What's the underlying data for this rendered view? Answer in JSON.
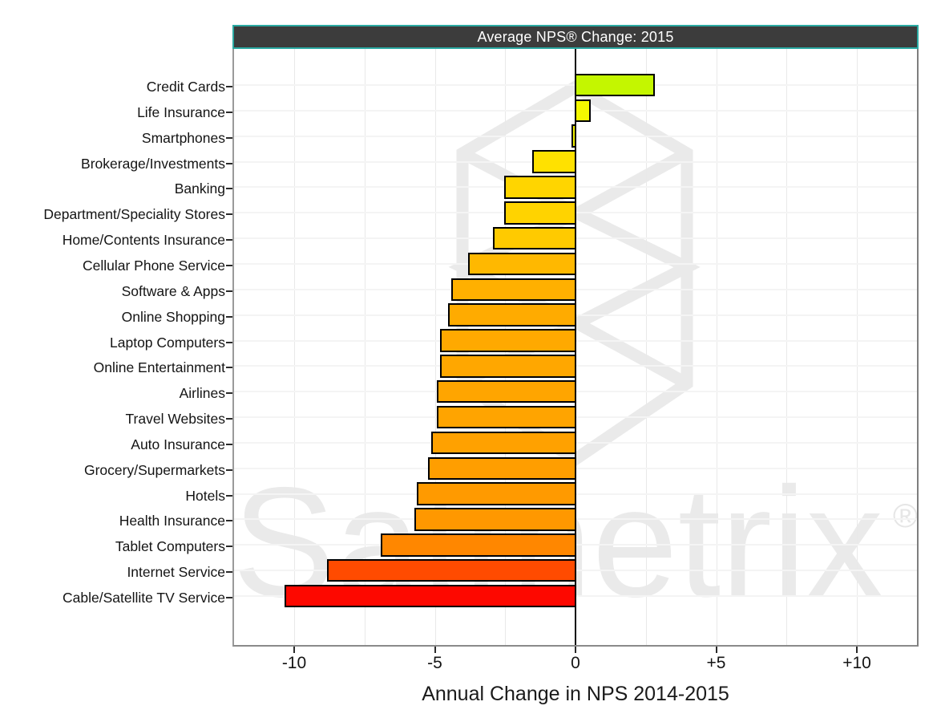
{
  "window": {
    "title_bar": {
      "text": "Average NPS® Change: 2015",
      "background": "#3c3c3c",
      "border_color": "#2ba9a2",
      "text_color": "#ffffff"
    }
  },
  "chart_data": {
    "type": "bar",
    "orientation": "horizontal",
    "title": "Average NPS® Change: 2015",
    "xlabel": "Annual Change in NPS 2014-2015",
    "xlim": [
      -12.2,
      12.2
    ],
    "x_tick_values": [
      -10,
      -5,
      0,
      5,
      10
    ],
    "x_tick_labels": [
      "-10",
      "-5",
      "0",
      "+5",
      "+10"
    ],
    "grid": {
      "vertical_step": 2.5,
      "horizontal_lines": "one per category",
      "zero_line": true
    },
    "legend": "none",
    "categories": [
      "Credit Cards",
      "Life Insurance",
      "Smartphones",
      "Brokerage/Investments",
      "Banking",
      "Department/Speciality Stores",
      "Home/Contents Insurance",
      "Cellular Phone Service",
      "Software & Apps",
      "Online Shopping",
      "Laptop Computers",
      "Online Entertainment",
      "Airlines",
      "Travel Websites",
      "Auto Insurance",
      "Grocery/Supermarkets",
      "Hotels",
      "Health Insurance",
      "Tablet Computers",
      "Internet Service",
      "Cable/Satellite TV Service"
    ],
    "values": [
      2.8,
      0.5,
      -0.1,
      -1.5,
      -2.5,
      -2.5,
      -2.9,
      -3.8,
      -4.4,
      -4.5,
      -4.8,
      -4.8,
      -4.9,
      -4.9,
      -5.1,
      -5.2,
      -5.6,
      -5.7,
      -6.9,
      -8.8,
      -10.3
    ],
    "bar_colors": [
      "#c4f600",
      "#f4f900",
      "#f0f000",
      "#ffe100",
      "#ffd500",
      "#ffd300",
      "#ffca00",
      "#ffb800",
      "#ffb000",
      "#ffab00",
      "#ffa900",
      "#ffa700",
      "#ffa500",
      "#ffa400",
      "#ffa100",
      "#ff9e00",
      "#ff9a00",
      "#ff9800",
      "#ff8700",
      "#ff4b00",
      "#fd0800"
    ],
    "bar_border_color": "#000000"
  },
  "watermark": {
    "text": "Satmetrix",
    "registered": "®",
    "color": "#eaeaea"
  },
  "axis": {
    "text_color": "#141414"
  }
}
